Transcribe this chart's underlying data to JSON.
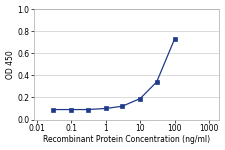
{
  "x": [
    0.03,
    0.1,
    0.3,
    1,
    3,
    10,
    30,
    100
  ],
  "y": [
    0.09,
    0.09,
    0.09,
    0.1,
    0.12,
    0.19,
    0.34,
    0.73
  ],
  "line_color": "#1F3A8A",
  "marker": "s",
  "marker_size": 2.5,
  "marker_facecolor": "#1F3A8A",
  "xlabel": "Recombinant Protein Concentration (ng/ml)",
  "ylabel": "OD 450",
  "ylim": [
    0.0,
    1.0
  ],
  "xlim": [
    0.008,
    2000
  ],
  "yticks": [
    0.0,
    0.2,
    0.4,
    0.6,
    0.8,
    1.0
  ],
  "ytick_labels": [
    "0.0",
    "0.2",
    "0.4",
    "0.6",
    "0.8",
    "1.0"
  ],
  "xticks": [
    0.01,
    0.1,
    1,
    10,
    100,
    1000
  ],
  "xtick_labels": [
    "0.01",
    "0.1",
    "1",
    "10",
    "100",
    "1000"
  ],
  "xlabel_fontsize": 5.5,
  "ylabel_fontsize": 5.5,
  "tick_fontsize": 5.5,
  "linewidth": 0.9,
  "background_color": "#ffffff",
  "grid_color": "#cccccc",
  "spine_color": "#aaaaaa"
}
